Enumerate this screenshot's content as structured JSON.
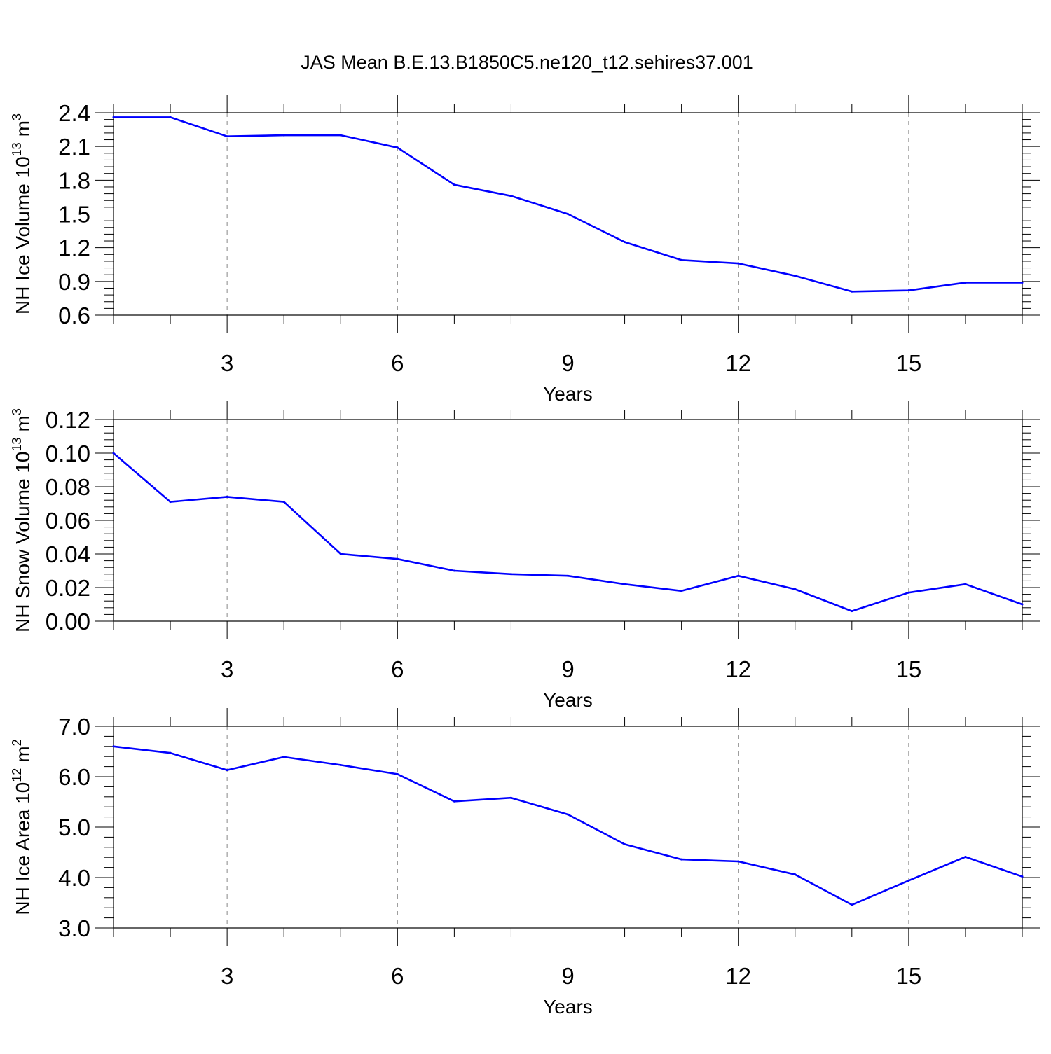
{
  "title": "JAS Mean B.E.13.B1850C5.ne120_t12.sehires37.001",
  "chart_data": [
    {
      "type": "line",
      "series_color": "#0000ff",
      "ylabel_text": "NH Ice Volume 10",
      "ylabel_exp": "13",
      "ylabel_unit": "m",
      "ylabel_unit_exp": "3",
      "xlabel": "Years",
      "xlim": [
        1,
        17
      ],
      "ylim": [
        0.6,
        2.4
      ],
      "ytick_labels": [
        "0.6",
        "0.9",
        "1.2",
        "1.5",
        "1.8",
        "2.1",
        "2.4"
      ],
      "xtick_labels": [
        "3",
        "6",
        "9",
        "12",
        "15"
      ],
      "x": [
        1,
        2,
        3,
        4,
        5,
        6,
        7,
        8,
        9,
        10,
        11,
        12,
        13,
        14,
        15,
        16,
        17
      ],
      "values": [
        2.36,
        2.36,
        2.19,
        2.2,
        2.2,
        2.09,
        1.76,
        1.66,
        1.5,
        1.25,
        1.09,
        1.06,
        0.95,
        0.81,
        0.82,
        0.89,
        0.89
      ]
    },
    {
      "type": "line",
      "series_color": "#0000ff",
      "ylabel_text": "NH Snow Volume 10",
      "ylabel_exp": "13",
      "ylabel_unit": "m",
      "ylabel_unit_exp": "3",
      "xlabel": "Years",
      "xlim": [
        1,
        17
      ],
      "ylim": [
        0.0,
        0.12
      ],
      "ytick_labels": [
        "0.00",
        "0.02",
        "0.04",
        "0.06",
        "0.08",
        "0.10",
        "0.12"
      ],
      "xtick_labels": [
        "3",
        "6",
        "9",
        "12",
        "15"
      ],
      "x": [
        1,
        2,
        3,
        4,
        5,
        6,
        7,
        8,
        9,
        10,
        11,
        12,
        13,
        14,
        15,
        16,
        17
      ],
      "values": [
        0.1,
        0.071,
        0.074,
        0.071,
        0.04,
        0.037,
        0.03,
        0.028,
        0.027,
        0.022,
        0.018,
        0.027,
        0.019,
        0.006,
        0.017,
        0.022,
        0.01
      ]
    },
    {
      "type": "line",
      "series_color": "#0000ff",
      "ylabel_text": "NH Ice Area 10",
      "ylabel_exp": "12",
      "ylabel_unit": "m",
      "ylabel_unit_exp": "2",
      "xlabel": "Years",
      "xlim": [
        1,
        17
      ],
      "ylim": [
        3.0,
        7.0
      ],
      "ytick_labels": [
        "3.0",
        "4.0",
        "5.0",
        "6.0",
        "7.0"
      ],
      "xtick_labels": [
        "3",
        "6",
        "9",
        "12",
        "15"
      ],
      "x": [
        1,
        2,
        3,
        4,
        5,
        6,
        7,
        8,
        9,
        10,
        11,
        12,
        13,
        14,
        15,
        16,
        17
      ],
      "values": [
        6.6,
        6.47,
        6.13,
        6.39,
        6.23,
        6.05,
        5.51,
        5.58,
        5.25,
        4.66,
        4.36,
        4.32,
        4.06,
        3.46,
        3.94,
        4.41,
        4.02
      ]
    }
  ]
}
